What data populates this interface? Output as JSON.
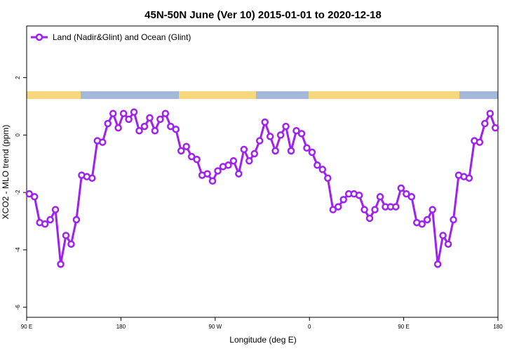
{
  "chart_data": {
    "type": "line",
    "title": "45N-50N June (Ver 10)   2015-01-01 to 2020-12-18",
    "xlabel": "Longitude (deg E)",
    "ylabel": "XCO2 - MLO trend (ppm)",
    "x": [
      92.5,
      97.5,
      102.5,
      107.5,
      112.5,
      117.5,
      122.5,
      127.5,
      132.5,
      137.5,
      142.5,
      147.5,
      152.5,
      157.5,
      162.5,
      167.5,
      172.5,
      177.5,
      182.5,
      187.5,
      192.5,
      197.5,
      202.5,
      207.5,
      212.5,
      217.5,
      222.5,
      227.5,
      232.5,
      237.5,
      242.5,
      247.5,
      252.5,
      257.5,
      262.5,
      267.5,
      272.5,
      277.5,
      282.5,
      287.5,
      292.5,
      297.5,
      302.5,
      307.5,
      312.5,
      317.5,
      322.5,
      327.5,
      332.5,
      337.5,
      342.5,
      347.5,
      352.5,
      357.5,
      362.5,
      367.5,
      372.5,
      377.5,
      382.5,
      387.5,
      392.5,
      397.5,
      402.5,
      407.5,
      412.5,
      417.5,
      422.5,
      427.5,
      432.5,
      437.5,
      442.5,
      447.5,
      452.5,
      457.5,
      462.5,
      467.5,
      472.5,
      477.5,
      482.5,
      487.5,
      492.5,
      497.5,
      502.5,
      507.5,
      512.5,
      517.5,
      522.5,
      527.5,
      532.5,
      537.5
    ],
    "series": [
      {
        "name": "Land (Nadir&Glint) and Ocean (Glint)",
        "color": "#a020f0",
        "values": [
          -2.05,
          -2.15,
          -3.05,
          -3.1,
          -2.95,
          -2.6,
          -4.5,
          -3.5,
          -3.8,
          -2.95,
          -1.4,
          -1.45,
          -1.5,
          -0.2,
          -0.25,
          0.4,
          0.75,
          0.25,
          0.75,
          0.55,
          0.8,
          0.15,
          0.3,
          0.6,
          0.15,
          0.55,
          0.75,
          0.3,
          0.2,
          -0.55,
          -0.4,
          -0.75,
          -0.85,
          -1.4,
          -1.35,
          -1.6,
          -1.25,
          -1.1,
          -1.05,
          -0.9,
          -1.35,
          -0.5,
          -0.9,
          -0.65,
          -0.2,
          0.45,
          -0.05,
          -0.55,
          0.0,
          0.3,
          -0.55,
          0.15,
          0.05,
          -0.45,
          -0.6,
          -1.05,
          -1.2,
          -1.5,
          -2.6,
          -2.5,
          -2.25,
          -2.05,
          -2.05,
          -2.1,
          -2.6,
          -2.9,
          -2.6,
          -2.15,
          -2.5,
          -2.5,
          -2.5,
          -1.85,
          -2.05,
          -2.15,
          -3.05,
          -3.1,
          -2.95,
          -2.6,
          -4.5,
          -3.5,
          -3.8,
          -2.95,
          -1.4,
          -1.45,
          -1.5,
          -0.2,
          -0.25,
          0.4,
          0.75,
          0.25
        ]
      }
    ],
    "xlim": [
      90,
      540
    ],
    "xticks": [
      {
        "value": 90,
        "label": "90 E"
      },
      180,
      {
        "value": 270,
        "label": "90 W"
      },
      {
        "value": 360,
        "label": "0"
      },
      {
        "value": 450,
        "label": "90 E"
      },
      {
        "value": 540,
        "label": "180"
      }
    ],
    "ylim": [
      -6.35,
      3.8
    ],
    "yticks": [
      -6,
      -4,
      -2,
      0,
      2
    ],
    "legend": "top-left"
  }
}
